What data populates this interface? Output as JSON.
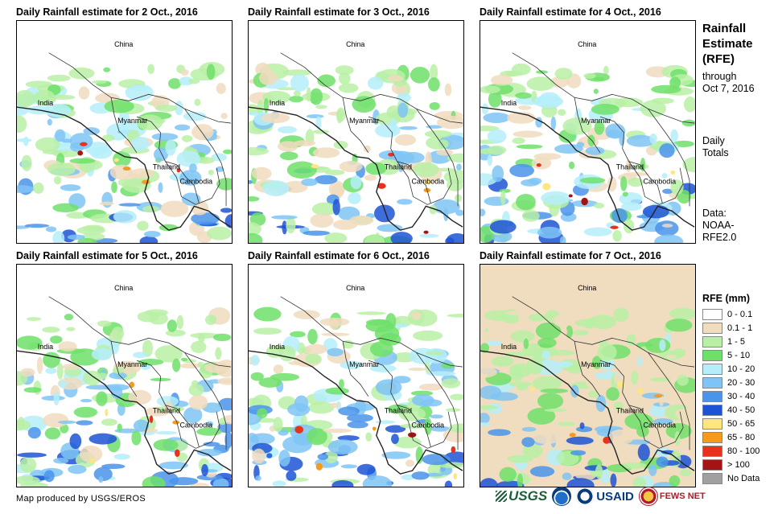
{
  "panels": [
    {
      "title": "Daily Rainfall estimate for 2 Oct., 2016",
      "labels": {
        "china": "China",
        "india": "India",
        "myanmar": "Myanmar",
        "thailand": "Thailand",
        "cambodia": "Cambodia"
      }
    },
    {
      "title": "Daily Rainfall estimate for 3 Oct., 2016",
      "labels": {
        "china": "China",
        "india": "India",
        "myanmar": "Myanmar",
        "thailand": "Thailand",
        "cambodia": "Cambodia"
      }
    },
    {
      "title": "Daily Rainfall estimate for 4 Oct., 2016",
      "labels": {
        "china": "China",
        "india": "India",
        "myanmar": "Myanmar",
        "thailand": "Thailand",
        "cambodia": "Cambodia"
      }
    },
    {
      "title": "Daily Rainfall estimate for 5 Oct., 2016",
      "labels": {
        "china": "China",
        "india": "India",
        "myanmar": "Myanmar",
        "thailand": "Thailand",
        "cambodia": "Cambodia"
      }
    },
    {
      "title": "Daily Rainfall estimate for 6 Oct., 2016",
      "labels": {
        "china": "China",
        "india": "India",
        "myanmar": "Myanmar",
        "thailand": "Thailand",
        "cambodia": "Cambodia"
      }
    },
    {
      "title": "Daily Rainfall estimate for 7 Oct., 2016",
      "labels": {
        "china": "China",
        "india": "India",
        "myanmar": "Myanmar",
        "thailand": "Thailand",
        "cambodia": "Cambodia"
      }
    }
  ],
  "side": {
    "title_line1": "Rainfall",
    "title_line2": "Estimate",
    "title_line3": "(RFE)",
    "through_line1": "through",
    "through_line2": "Oct 7, 2016",
    "totals_line1": "Daily",
    "totals_line2": "Totals",
    "data_line1": "Data:",
    "data_line2": "NOAA-",
    "data_line3": "RFE2.0"
  },
  "legend": {
    "title": "RFE (mm)",
    "items": [
      {
        "label": "0 - 0.1",
        "color": "#ffffff"
      },
      {
        "label": "0.1 - 1",
        "color": "#f0dcbe"
      },
      {
        "label": "1 - 5",
        "color": "#b9f0a6"
      },
      {
        "label": "5 - 10",
        "color": "#6ee06a"
      },
      {
        "label": "10 - 20",
        "color": "#b5eefa"
      },
      {
        "label": "20 - 30",
        "color": "#7fc4f5"
      },
      {
        "label": "30 - 40",
        "color": "#4a94ea"
      },
      {
        "label": "40 - 50",
        "color": "#1d54d6"
      },
      {
        "label": "50 - 65",
        "color": "#ffe680"
      },
      {
        "label": "65 - 80",
        "color": "#f59a1d"
      },
      {
        "label": "80 - 100",
        "color": "#e8321c"
      },
      {
        "label": "> 100",
        "color": "#a31414"
      },
      {
        "label": "No Data",
        "color": "#a0a0a0"
      }
    ]
  },
  "credit": "Map produced by USGS/EROS",
  "logos": {
    "usgs": "USGS",
    "usaid": "USAID",
    "fews": "FEWS NET"
  }
}
